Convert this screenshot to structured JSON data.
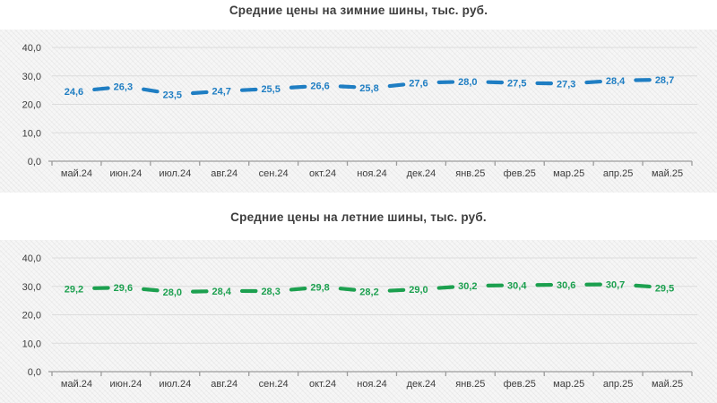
{
  "styles": {
    "grid_color": "#dcdcdc",
    "axis_color": "#9c9c9c",
    "tick_label_color": "#3d3d3d",
    "title_color": "#3d3d3d",
    "winter_line_color": "#1F7EC3",
    "summer_line_color": "#1CA04F"
  },
  "chart_data": [
    {
      "type": "line",
      "title": "Средние цены на зимние шины, тыс. руб.",
      "series_name": "Средние цены на зимние шины",
      "color": "#1F7EC3",
      "line_style": "dashed",
      "legend": "none",
      "grid": true,
      "categories": [
        "май.24",
        "июн.24",
        "июл.24",
        "авг.24",
        "сен.24",
        "окт.24",
        "ноя.24",
        "дек.24",
        "янв.25",
        "фев.25",
        "мар.25",
        "апр.25",
        "май.25"
      ],
      "values": [
        24.6,
        26.3,
        23.5,
        24.7,
        25.5,
        26.6,
        25.8,
        27.6,
        28.0,
        27.5,
        27.3,
        28.4,
        28.7
      ],
      "value_labels": [
        "24,6",
        "26,3",
        "23,5",
        "24,7",
        "25,5",
        "26,6",
        "25,8",
        "27,6",
        "28,0",
        "27,5",
        "27,3",
        "28,4",
        "28,7"
      ],
      "ylim": [
        0,
        40
      ],
      "yticks": [
        0,
        10,
        20,
        30,
        40
      ],
      "ytick_labels": [
        "0,0",
        "10,0",
        "20,0",
        "30,0",
        "40,0"
      ],
      "xlabel": "",
      "ylabel": ""
    },
    {
      "type": "line",
      "title": "Средние цены на летние шины, тыс. руб.",
      "series_name": "Средние цены на летние шины",
      "color": "#1CA04F",
      "line_style": "dashed",
      "legend": "none",
      "grid": true,
      "categories": [
        "май.24",
        "июн.24",
        "июл.24",
        "авг.24",
        "сен.24",
        "окт.24",
        "ноя.24",
        "дек.24",
        "янв.25",
        "фев.25",
        "мар.25",
        "апр.25",
        "май.25"
      ],
      "values": [
        29.2,
        29.6,
        28.0,
        28.4,
        28.3,
        29.8,
        28.2,
        29.0,
        30.2,
        30.4,
        30.6,
        30.7,
        29.5
      ],
      "value_labels": [
        "29,2",
        "29,6",
        "28,0",
        "28,4",
        "28,3",
        "29,8",
        "28,2",
        "29,0",
        "30,2",
        "30,4",
        "30,6",
        "30,7",
        "29,5"
      ],
      "ylim": [
        0,
        40
      ],
      "yticks": [
        0,
        10,
        20,
        30,
        40
      ],
      "ytick_labels": [
        "0,0",
        "10,0",
        "20,0",
        "30,0",
        "40,0"
      ],
      "xlabel": "",
      "ylabel": ""
    }
  ]
}
